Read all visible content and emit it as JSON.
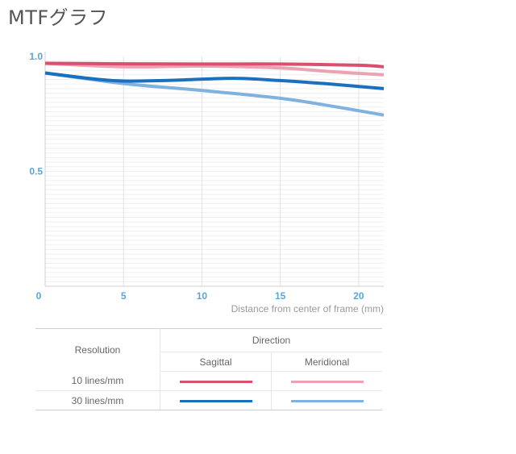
{
  "page": {
    "title": "MTFグラフ"
  },
  "chart_data": {
    "type": "line",
    "xlabel": "Distance from center of frame (mm)",
    "xlim": [
      0,
      21.6
    ],
    "ylim": [
      0,
      1.0
    ],
    "x_ticks": [
      0,
      5,
      10,
      15,
      20
    ],
    "y_ticks": [
      0.5,
      1.0
    ],
    "y_tick_labels": [
      "0.5",
      "1.0"
    ],
    "x_tick_labels": [
      "0",
      "5",
      "10",
      "15",
      "20"
    ],
    "grid": true,
    "series": [
      {
        "color": "#d94f6e",
        "direction": "sagittal",
        "resolution": "10 lines/mm",
        "x": [
          0,
          5,
          10,
          15,
          20,
          21.6
        ],
        "y": [
          0.97,
          0.968,
          0.967,
          0.967,
          0.962,
          0.955
        ]
      },
      {
        "color": "#eba2b3",
        "direction": "meridional",
        "resolution": "10 lines/mm",
        "x": [
          0,
          5,
          10,
          15,
          18,
          21.6
        ],
        "y": [
          0.97,
          0.955,
          0.958,
          0.95,
          0.935,
          0.92
        ]
      },
      {
        "color": "#1a6fbf",
        "direction": "sagittal",
        "resolution": "30 lines/mm",
        "x": [
          0,
          3,
          5,
          8,
          12,
          15,
          18,
          21.6
        ],
        "y": [
          0.928,
          0.903,
          0.893,
          0.896,
          0.905,
          0.895,
          0.881,
          0.86
        ]
      },
      {
        "color": "#7fb2df",
        "direction": "meridional",
        "resolution": "30 lines/mm",
        "x": [
          0,
          5,
          10,
          15,
          18,
          21.6
        ],
        "y": [
          0.928,
          0.882,
          0.852,
          0.818,
          0.787,
          0.745
        ]
      }
    ]
  },
  "legend": {
    "resolution_header": "Resolution",
    "direction_header": "Direction",
    "sagittal_label": "Sagittal",
    "meridional_label": "Meridional",
    "rows": [
      {
        "label": "10 lines/mm",
        "sagittal_color": "#d94f6e",
        "meridional_color": "#eba2b3"
      },
      {
        "label": "30 lines/mm",
        "sagittal_color": "#1a6fbf",
        "meridional_color": "#7fb2df"
      }
    ]
  }
}
